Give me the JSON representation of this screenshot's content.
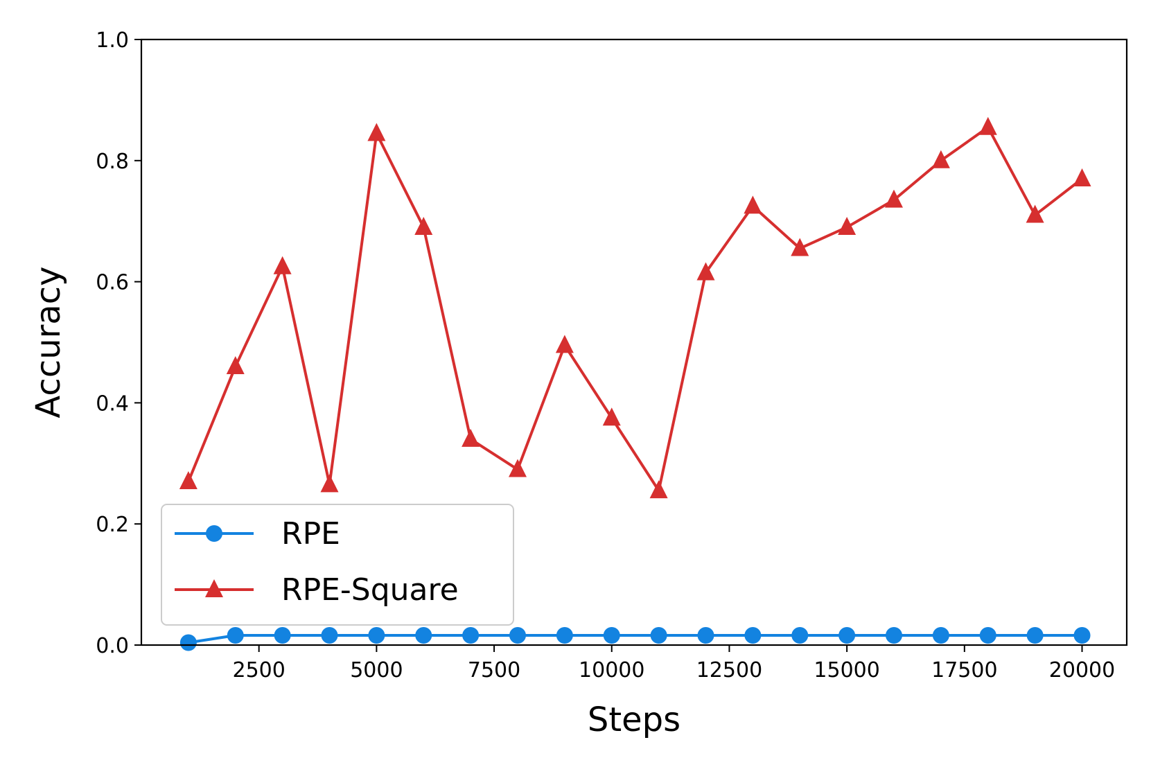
{
  "chart_data": {
    "type": "line",
    "title": "",
    "xlabel": "Steps",
    "ylabel": "Accuracy",
    "xlim": [
      0,
      20950
    ],
    "ylim": [
      0,
      1.0
    ],
    "xticks": [
      2500,
      5000,
      7500,
      10000,
      12500,
      15000,
      17500,
      20000
    ],
    "yticks": [
      0.0,
      0.2,
      0.4,
      0.6,
      0.8,
      1.0
    ],
    "ytick_labels": [
      "0.0",
      "0.2",
      "0.4",
      "0.6",
      "0.8",
      "1.0"
    ],
    "grid": false,
    "legend": "lower-left",
    "x": [
      1000,
      2000,
      3000,
      4000,
      5000,
      6000,
      7000,
      8000,
      9000,
      10000,
      11000,
      12000,
      13000,
      14000,
      15000,
      16000,
      17000,
      18000,
      19000,
      20000
    ],
    "series": [
      {
        "name": "RPE",
        "marker": "circle",
        "color": "#1383e0",
        "values": [
          0.004,
          0.016,
          0.016,
          0.016,
          0.016,
          0.016,
          0.016,
          0.016,
          0.016,
          0.016,
          0.016,
          0.016,
          0.016,
          0.016,
          0.016,
          0.016,
          0.016,
          0.016,
          0.016,
          0.016
        ]
      },
      {
        "name": "RPE-Square",
        "marker": "triangle",
        "color": "#d62f2f",
        "values": [
          0.27,
          0.46,
          0.625,
          0.265,
          0.845,
          0.69,
          0.34,
          0.29,
          0.495,
          0.375,
          0.255,
          0.615,
          0.725,
          0.655,
          0.69,
          0.735,
          0.8,
          0.855,
          0.71,
          0.77
        ]
      }
    ]
  }
}
